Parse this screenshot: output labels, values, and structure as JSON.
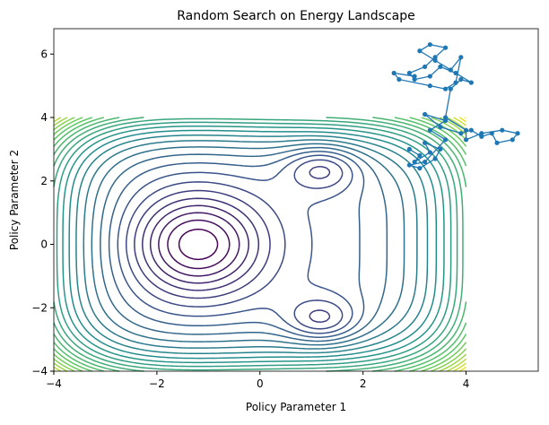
{
  "chart_data": {
    "type": "contour-walk",
    "title": "Random Search on Energy Landscape",
    "xlabel": "Policy Parameter 1",
    "ylabel": "Policy Parameter 2",
    "xlim": [
      -4,
      5.4
    ],
    "ylim": [
      -4,
      6.8
    ],
    "xticks": [
      {
        "value": -4,
        "label": "−4"
      },
      {
        "value": -2,
        "label": "−2"
      },
      0,
      2,
      4
    ],
    "yticks": [
      {
        "value": -4,
        "label": "−4"
      },
      {
        "value": -2,
        "label": "−2"
      },
      0,
      2,
      4,
      6
    ],
    "contour": {
      "extent": [
        -4,
        4
      ],
      "colormap": "viridis",
      "levels": [
        -2.8,
        -2.4,
        -2.0,
        -1.6,
        -1.2,
        -0.8,
        -0.4,
        0.0,
        0.4,
        0.8,
        1.2,
        1.6,
        2.0,
        2.4,
        2.8,
        3.2,
        3.6,
        4.0,
        4.4,
        4.8,
        5.2,
        5.6,
        6.0,
        6.4,
        6.8,
        7.2,
        7.6,
        8.0
      ]
    },
    "series": [
      {
        "color": "#1f77b4",
        "x": [
          2.9,
          3.1,
          3.0,
          3.3,
          3.2,
          3.5,
          3.4,
          3.1,
          2.9,
          3.2,
          3.6,
          3.3,
          3.6,
          3.2,
          3.5,
          3.9,
          4.1,
          4.3,
          4.5,
          4.6,
          4.9,
          5.0,
          4.7,
          4.3,
          4.0,
          4.0,
          3.6,
          3.7,
          3.9,
          4.1,
          3.8,
          3.5,
          3.3,
          3.0,
          2.9,
          3.2,
          3.4,
          3.6,
          3.3,
          3.1,
          3.4,
          3.7,
          3.9,
          3.8,
          3.6,
          3.3,
          2.7,
          2.6,
          3.0
        ],
        "y": [
          3.0,
          2.8,
          2.6,
          2.9,
          3.2,
          3.0,
          2.7,
          2.4,
          2.5,
          2.6,
          3.3,
          3.6,
          3.9,
          4.1,
          3.7,
          3.5,
          3.6,
          3.4,
          3.5,
          3.2,
          3.3,
          3.5,
          3.6,
          3.5,
          3.3,
          3.6,
          4.0,
          4.9,
          5.2,
          5.1,
          5.4,
          5.6,
          5.3,
          5.2,
          5.4,
          5.6,
          5.9,
          6.2,
          6.3,
          6.1,
          5.8,
          5.5,
          5.9,
          5.1,
          4.9,
          5.0,
          5.2,
          5.4,
          5.3
        ]
      }
    ]
  }
}
